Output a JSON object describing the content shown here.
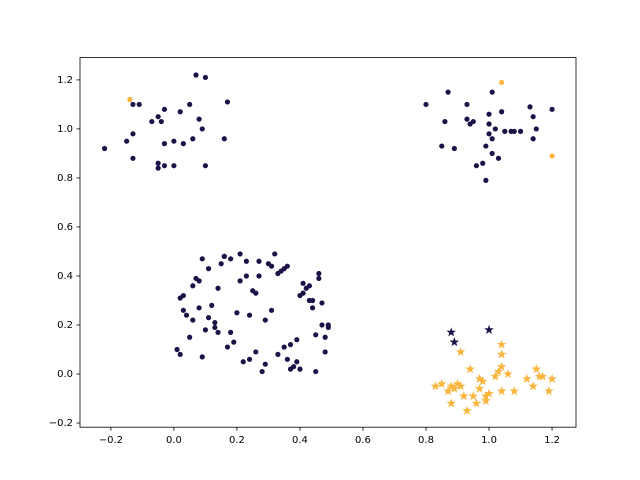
{
  "chart_data": {
    "type": "scatter",
    "xlim": [
      -0.298,
      1.276
    ],
    "ylim": [
      -0.217,
      1.291
    ],
    "xticks": [
      {
        "value": -0.2,
        "label": "−0.2"
      },
      {
        "value": 0,
        "label": "0.0"
      },
      {
        "value": 0.2,
        "label": "0.2"
      },
      {
        "value": 0.4,
        "label": "0.4"
      },
      {
        "value": 0.6,
        "label": "0.6"
      },
      {
        "value": 0.8,
        "label": "0.8"
      },
      {
        "value": 1,
        "label": "1.0"
      },
      {
        "value": 1.2,
        "label": "1.2"
      }
    ],
    "yticks": [
      {
        "value": -0.2,
        "label": "−0.2"
      },
      {
        "value": 0,
        "label": "0.0"
      },
      {
        "value": 0.2,
        "label": "0.2"
      },
      {
        "value": 0.4,
        "label": "0.4"
      },
      {
        "value": 0.6,
        "label": "0.6"
      },
      {
        "value": 0.8,
        "label": "0.8"
      },
      {
        "value": 1,
        "label": "1.0"
      },
      {
        "value": 1.2,
        "label": "1.2"
      }
    ],
    "series": [
      {
        "color": "#1d1147",
        "marker": "circle",
        "x": [
          0.02,
          0.37,
          0.15,
          0.44,
          0.29,
          0.08,
          0.49,
          0.21,
          0.33,
          0.11,
          0.46,
          0.05,
          0.26,
          0.4,
          0.18,
          0.31,
          0.01,
          0.43,
          0.13,
          0.36,
          0.24,
          0.47,
          0.07,
          0.39,
          0.16,
          0.28,
          0.42,
          0.1,
          0.34,
          0.2,
          0.48,
          0.03,
          0.23,
          0.45,
          0.12,
          0.38,
          0.27,
          0.06,
          0.41,
          0.17,
          0.32,
          0.49,
          0.09,
          0.25,
          0.35,
          0.14,
          0.44,
          0.22,
          0.04,
          0.3,
          0.19,
          0.46,
          0.08,
          0.37,
          0.27,
          0.13,
          0.41,
          0.02,
          0.33,
          0.24,
          0.48,
          0.16,
          0.39,
          0.06,
          0.29,
          0.43,
          0.11,
          0.35,
          0.21,
          0.45,
          0.03,
          0.31,
          0.18,
          0.4,
          0.26,
          0.09,
          0.47,
          0.14,
          0.36,
          0.23,
          -0.22,
          -0.15,
          -0.13,
          -0.13,
          -0.11,
          -0.13,
          -0.07,
          -0.05,
          -0.04,
          -0.03,
          -0.05,
          -0.05,
          -0.03,
          -0.03,
          0.0,
          0.0,
          0.02,
          0.03,
          0.05,
          0.06,
          0.07,
          0.08,
          0.09,
          0.1,
          0.1,
          0.16,
          0.17,
          0.8,
          0.85,
          0.86,
          0.87,
          0.89,
          0.93,
          0.93,
          0.94,
          0.95,
          0.96,
          0.98,
          0.99,
          0.99,
          1.0,
          1.0,
          1.0,
          1.01,
          1.01,
          1.01,
          1.02,
          1.03,
          1.04,
          1.05,
          1.07,
          1.08,
          1.1,
          1.13,
          1.14,
          1.14,
          1.15,
          1.2
        ],
        "values": [
          0.31,
          0.12,
          0.45,
          0.27,
          0.04,
          0.38,
          0.19,
          0.49,
          0.08,
          0.23,
          0.41,
          0.15,
          0.33,
          0.02,
          0.47,
          0.26,
          0.1,
          0.36,
          0.21,
          0.44,
          0.06,
          0.29,
          0.39,
          0.14,
          0.48,
          0.01,
          0.35,
          0.18,
          0.42,
          0.25,
          0.09,
          0.32,
          0.46,
          0.16,
          0.28,
          0.03,
          0.4,
          0.22,
          0.37,
          0.11,
          0.49,
          0.2,
          0.07,
          0.34,
          0.43,
          0.17,
          0.3,
          0.05,
          0.24,
          0.45,
          0.13,
          0.39,
          0.27,
          0.02,
          0.46,
          0.19,
          0.33,
          0.08,
          0.41,
          0.24,
          0.15,
          0.48,
          0.05,
          0.36,
          0.22,
          0.3,
          0.43,
          0.11,
          0.38,
          0.01,
          0.26,
          0.44,
          0.17,
          0.32,
          0.09,
          0.47,
          0.2,
          0.35,
          0.06,
          0.4,
          0.92,
          0.95,
          0.98,
          1.1,
          1.1,
          0.88,
          1.03,
          1.05,
          1.03,
          1.08,
          0.86,
          0.84,
          0.85,
          0.94,
          0.85,
          0.95,
          1.07,
          0.94,
          1.1,
          0.96,
          1.22,
          1.04,
          1.0,
          1.21,
          0.85,
          0.96,
          1.11,
          1.1,
          0.93,
          1.03,
          1.15,
          0.92,
          1.1,
          1.04,
          1.02,
          1.03,
          0.85,
          0.86,
          0.79,
          0.93,
          1.02,
          0.98,
          1.06,
          0.9,
          0.96,
          1.15,
          1.0,
          0.88,
          1.07,
          0.99,
          0.99,
          0.99,
          0.99,
          1.09,
          1.05,
          0.96,
          1.0,
          1.08
        ]
      },
      {
        "color": "#fbb43c",
        "marker": "circle",
        "x": [
          -0.14,
          1.04,
          1.2
        ],
        "values": [
          1.12,
          1.19,
          0.89
        ]
      },
      {
        "color": "#1d1147",
        "marker": "star",
        "x": [
          0.88,
          0.89,
          1.0
        ],
        "values": [
          0.17,
          0.13,
          0.18
        ]
      },
      {
        "color": "#fbb43c",
        "marker": "star",
        "x": [
          0.83,
          0.85,
          0.87,
          0.88,
          0.88,
          0.89,
          0.9,
          0.91,
          0.91,
          0.92,
          0.93,
          0.94,
          0.95,
          0.96,
          0.97,
          0.97,
          0.98,
          0.99,
          0.99,
          1.0,
          1.02,
          1.03,
          1.04,
          1.04,
          1.04,
          1.04,
          1.06,
          1.08,
          1.12,
          1.14,
          1.15,
          1.16,
          1.17,
          1.19,
          1.2
        ],
        "values": [
          -0.05,
          -0.04,
          -0.07,
          -0.05,
          -0.12,
          -0.06,
          -0.04,
          0.09,
          -0.05,
          -0.09,
          -0.15,
          0.02,
          -0.09,
          -0.12,
          -0.06,
          -0.02,
          -0.03,
          -0.11,
          -0.09,
          -0.08,
          -0.01,
          0.01,
          0.03,
          0.08,
          0.12,
          -0.07,
          0.0,
          -0.07,
          -0.02,
          -0.05,
          0.02,
          -0.01,
          -0.01,
          -0.07,
          -0.02
        ]
      }
    ]
  }
}
